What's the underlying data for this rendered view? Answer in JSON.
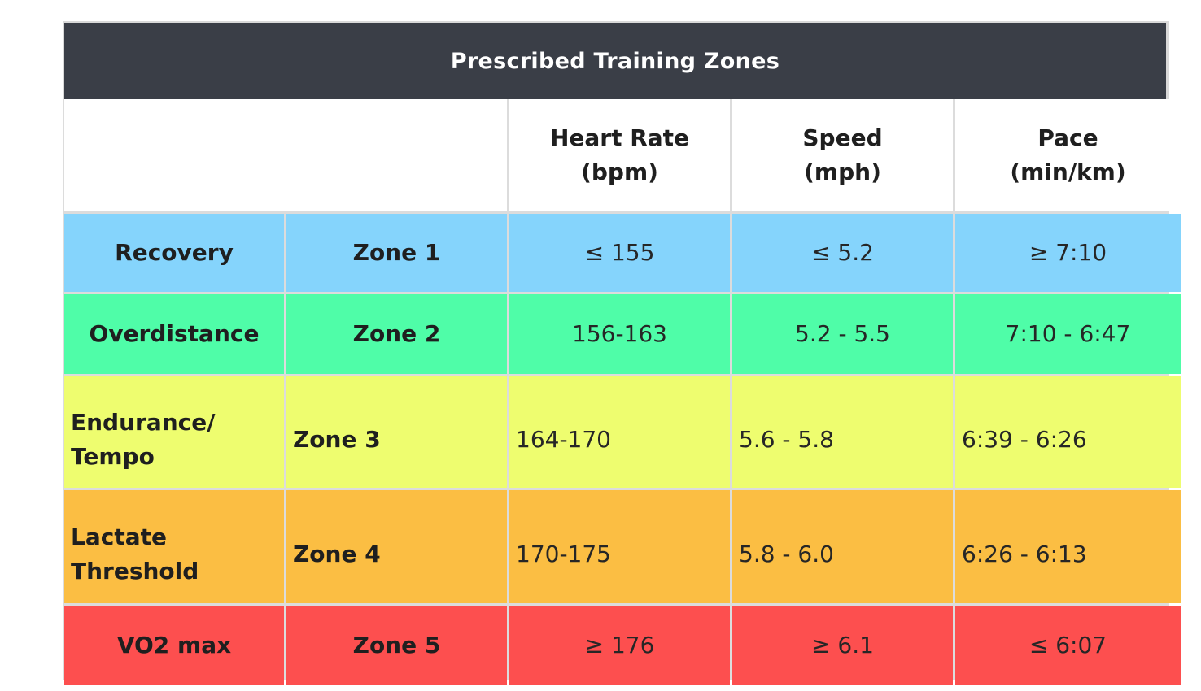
{
  "title": "Prescribed Training Zones",
  "headers": {
    "heart_rate": [
      "Heart Rate",
      "(bpm)"
    ],
    "speed": [
      "Speed",
      "(mph)"
    ],
    "pace": [
      "Pace",
      "(min/km)"
    ]
  },
  "rows": [
    {
      "name_lines": [
        "Recovery"
      ],
      "zone": "Zone 1",
      "heart_rate": "≤ 155",
      "speed": "≤ 5.2",
      "pace": "≥ 7:10",
      "color": "#85d4fc"
    },
    {
      "name_lines": [
        "Overdistance"
      ],
      "zone": "Zone 2",
      "heart_rate": "156-163",
      "speed": "5.2 - 5.5",
      "pace": "7:10 - 6:47",
      "color": "#4ffda8"
    },
    {
      "name_lines": [
        "Endurance/",
        "Tempo"
      ],
      "zone": "Zone 3",
      "heart_rate": "164-170",
      "speed": "5.6 - 5.8",
      "pace": "6:39 - 6:26",
      "color": "#eefd6f"
    },
    {
      "name_lines": [
        "Lactate",
        "Threshold"
      ],
      "zone": "Zone 4",
      "heart_rate": "170-175",
      "speed": "5.8 - 6.0",
      "pace": "6:26 - 6:13",
      "color": "#fbbe43"
    },
    {
      "name_lines": [
        "VO2 max"
      ],
      "zone": "Zone 5",
      "heart_rate": "≥ 176",
      "speed": "≥ 6.1",
      "pace": "≤ 6:07",
      "color": "#fd4f4f"
    }
  ],
  "colors": {
    "title_bar": "#3a3e47",
    "grid_lines": "#dcdcdc"
  }
}
